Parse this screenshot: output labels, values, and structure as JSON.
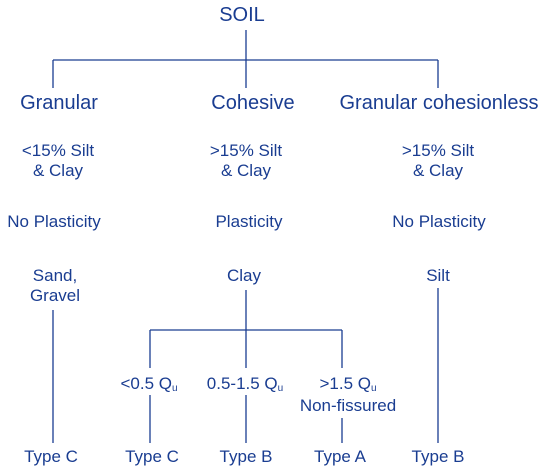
{
  "colors": {
    "text": "#1a3d91",
    "line": "#1a3d91",
    "background": "#ffffff"
  },
  "root": {
    "label": "SOIL"
  },
  "categories": [
    {
      "name": "Granular",
      "fines": [
        "<15% Silt",
        "& Clay"
      ],
      "plasticity": "No Plasticity",
      "material": [
        "Sand,",
        "Gravel"
      ]
    },
    {
      "name": "Cohesive",
      "fines": [
        ">15% Silt",
        "& Clay"
      ],
      "plasticity": "Plasticity",
      "material": [
        "Clay"
      ]
    },
    {
      "name": "Granular cohesionless",
      "fines": [
        ">15% Silt",
        "& Clay"
      ],
      "plasticity": "No Plasticity",
      "material": [
        "Silt"
      ]
    }
  ],
  "strengths": [
    {
      "prefix": "<0.5 Q",
      "sub": "u",
      "note": ""
    },
    {
      "prefix": "0.5-1.5 Q",
      "sub": "u",
      "note": ""
    },
    {
      "prefix": ">1.5 Q",
      "sub": "u",
      "note": "Non-fissured"
    }
  ],
  "types": [
    "Type C",
    "Type C",
    "Type B",
    "Type A",
    "Type B"
  ]
}
